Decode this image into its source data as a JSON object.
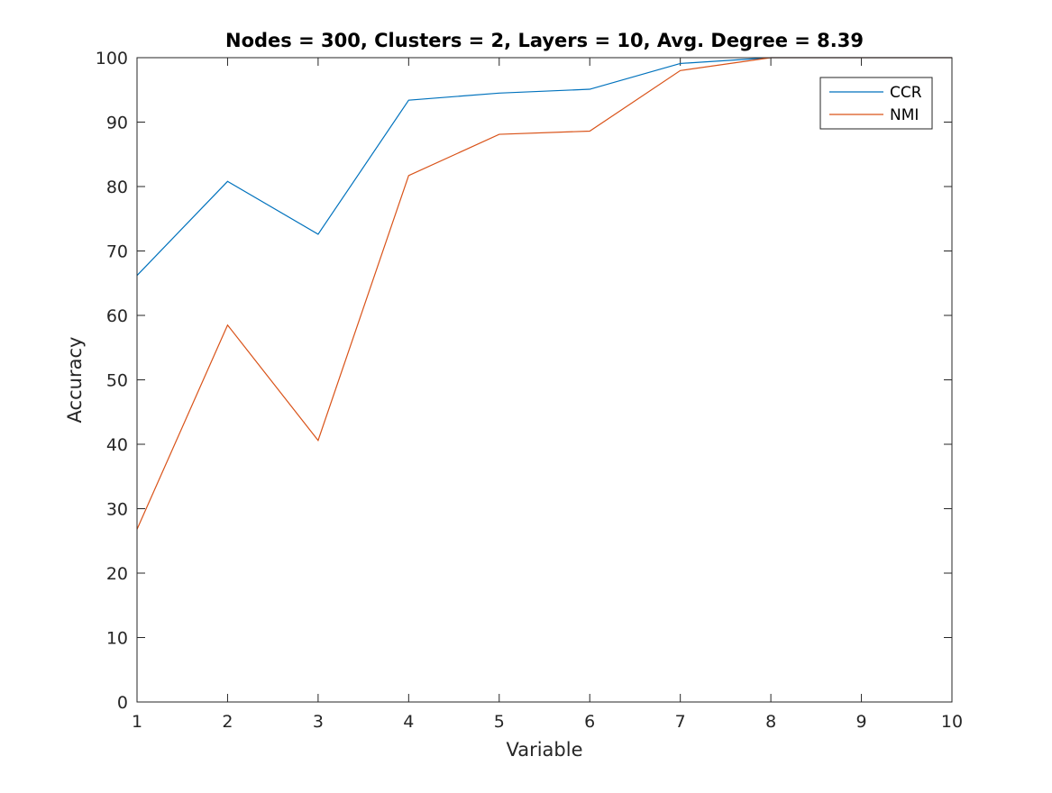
{
  "chart_data": {
    "type": "line",
    "title": "Nodes = 300, Clusters = 2, Layers = 10, Avg. Degree = 8.39",
    "xlabel": "Variable",
    "ylabel": "Accuracy",
    "x": [
      1,
      2,
      3,
      4,
      5,
      6,
      7,
      8,
      9,
      10
    ],
    "xlim": [
      1,
      10
    ],
    "ylim": [
      0,
      100
    ],
    "xticks": [
      1,
      2,
      3,
      4,
      5,
      6,
      7,
      8,
      9,
      10
    ],
    "yticks": [
      0,
      10,
      20,
      30,
      40,
      50,
      60,
      70,
      80,
      90,
      100
    ],
    "grid": false,
    "legend_position": "top-right",
    "series": [
      {
        "name": "CCR",
        "color": "#0072BD",
        "values": [
          66.2,
          80.8,
          72.6,
          93.4,
          94.5,
          95.1,
          99.1,
          100,
          100,
          100
        ]
      },
      {
        "name": "NMI",
        "color": "#D95319",
        "values": [
          26.8,
          58.5,
          40.6,
          81.7,
          88.1,
          88.6,
          98.0,
          100,
          100,
          100
        ]
      }
    ]
  }
}
